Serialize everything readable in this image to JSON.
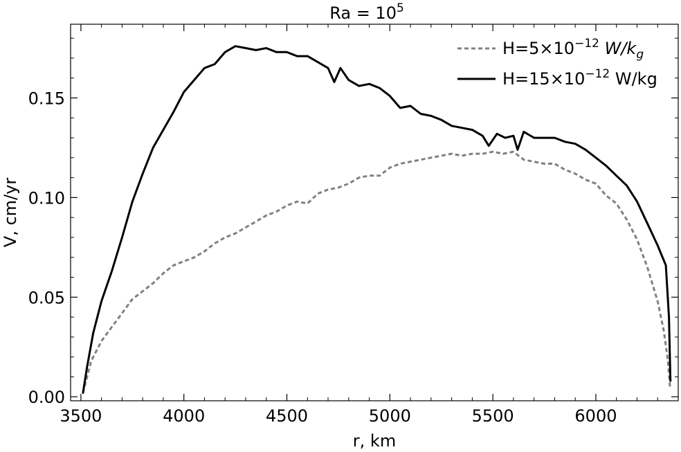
{
  "chart_data": {
    "type": "line",
    "title": "Ra = 10",
    "title_superscript": "5",
    "xlabel": "r, km",
    "ylabel": "V, cm/yr",
    "xlim": [
      3450,
      6400
    ],
    "ylim": [
      -0.002,
      0.187
    ],
    "xticks": [
      3500,
      4000,
      4500,
      5000,
      5500,
      6000
    ],
    "xtick_labels": [
      "3500",
      "4000",
      "4500",
      "5000",
      "5500",
      "6000"
    ],
    "yticks": [
      0.0,
      0.05,
      0.1,
      0.15
    ],
    "ytick_labels": [
      "0.00",
      "0.05",
      "0.10",
      "0.15"
    ],
    "x_minor_step": 100,
    "y_minor_step": 0.01,
    "grid": false,
    "legend_position": "top-right",
    "series": [
      {
        "name": "H=5×10",
        "name_superscript": "−12",
        "name_suffix": " W/k",
        "name_subscript": "g",
        "style": "dashed",
        "color": "#808080",
        "x": [
          3510,
          3550,
          3600,
          3650,
          3700,
          3750,
          3800,
          3850,
          3900,
          3950,
          4000,
          4050,
          4100,
          4150,
          4200,
          4250,
          4300,
          4350,
          4400,
          4450,
          4500,
          4550,
          4600,
          4650,
          4700,
          4750,
          4800,
          4850,
          4900,
          4950,
          5000,
          5050,
          5100,
          5150,
          5200,
          5250,
          5300,
          5350,
          5400,
          5450,
          5500,
          5550,
          5600,
          5650,
          5700,
          5750,
          5800,
          5850,
          5900,
          5950,
          6000,
          6050,
          6100,
          6150,
          6200,
          6250,
          6300,
          6330,
          6350,
          6360
        ],
        "y": [
          0.002,
          0.018,
          0.028,
          0.035,
          0.042,
          0.049,
          0.053,
          0.057,
          0.062,
          0.066,
          0.068,
          0.07,
          0.073,
          0.077,
          0.08,
          0.082,
          0.085,
          0.088,
          0.091,
          0.093,
          0.096,
          0.098,
          0.097,
          0.102,
          0.104,
          0.105,
          0.107,
          0.11,
          0.111,
          0.111,
          0.115,
          0.117,
          0.118,
          0.119,
          0.12,
          0.121,
          0.122,
          0.121,
          0.122,
          0.122,
          0.123,
          0.122,
          0.123,
          0.119,
          0.118,
          0.117,
          0.117,
          0.114,
          0.112,
          0.109,
          0.107,
          0.101,
          0.097,
          0.089,
          0.079,
          0.065,
          0.048,
          0.033,
          0.018,
          0.005
        ]
      },
      {
        "name": "H=15×10",
        "name_superscript": "−12",
        "name_suffix": " W/kg",
        "name_subscript": "",
        "style": "solid",
        "color": "#000000",
        "x": [
          3510,
          3530,
          3560,
          3600,
          3650,
          3700,
          3750,
          3800,
          3850,
          3900,
          3950,
          4000,
          4050,
          4100,
          4150,
          4200,
          4250,
          4300,
          4350,
          4400,
          4450,
          4500,
          4550,
          4600,
          4650,
          4700,
          4730,
          4760,
          4800,
          4850,
          4900,
          4950,
          5000,
          5050,
          5100,
          5150,
          5200,
          5250,
          5300,
          5350,
          5400,
          5450,
          5480,
          5520,
          5560,
          5600,
          5620,
          5650,
          5700,
          5750,
          5800,
          5850,
          5900,
          5950,
          6000,
          6050,
          6100,
          6150,
          6200,
          6250,
          6300,
          6340,
          6355,
          6362
        ],
        "y": [
          0.002,
          0.015,
          0.032,
          0.048,
          0.063,
          0.08,
          0.098,
          0.112,
          0.125,
          0.134,
          0.143,
          0.153,
          0.159,
          0.165,
          0.167,
          0.173,
          0.176,
          0.175,
          0.174,
          0.175,
          0.173,
          0.173,
          0.171,
          0.171,
          0.168,
          0.165,
          0.158,
          0.165,
          0.159,
          0.156,
          0.157,
          0.155,
          0.151,
          0.145,
          0.146,
          0.142,
          0.141,
          0.139,
          0.136,
          0.135,
          0.134,
          0.131,
          0.126,
          0.132,
          0.13,
          0.131,
          0.124,
          0.133,
          0.13,
          0.13,
          0.13,
          0.128,
          0.127,
          0.124,
          0.12,
          0.116,
          0.111,
          0.106,
          0.098,
          0.087,
          0.076,
          0.066,
          0.04,
          0.008
        ]
      }
    ]
  }
}
